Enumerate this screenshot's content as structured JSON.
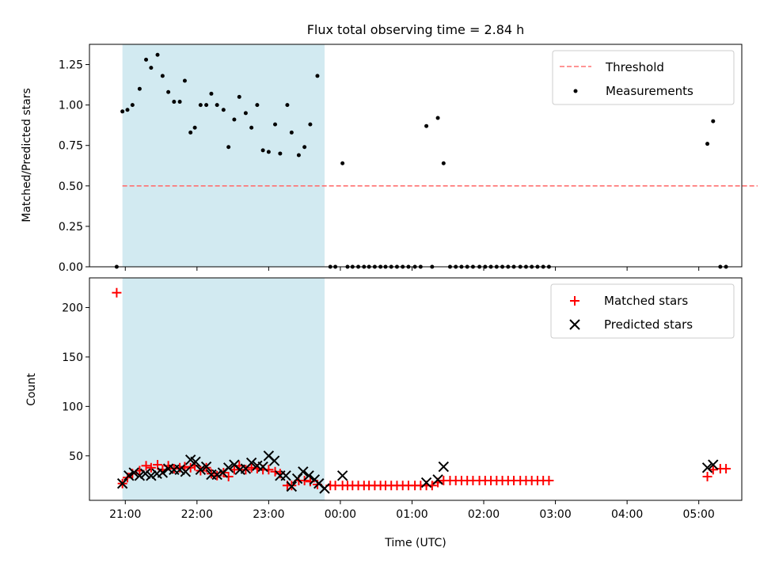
{
  "chart_data": {
    "title": "Flux total observing time = 2.84 h",
    "xlabel": "Time (UTC)",
    "xlim_hours": [
      20.5,
      29.6
    ],
    "xticks": [
      {
        "h": 21,
        "label": "21:00"
      },
      {
        "h": 22,
        "label": "22:00"
      },
      {
        "h": 23,
        "label": "23:00"
      },
      {
        "h": 24,
        "label": "00:00"
      },
      {
        "h": 25,
        "label": "01:00"
      },
      {
        "h": 26,
        "label": "02:00"
      },
      {
        "h": 27,
        "label": "03:00"
      },
      {
        "h": 28,
        "label": "04:00"
      },
      {
        "h": 29,
        "label": "05:00"
      }
    ],
    "shaded_interval_hours": [
      20.96,
      23.78
    ],
    "colors": {
      "shade": "#add8e6",
      "threshold": "#ff7070",
      "measurements": "#000000",
      "matched": "#ff0000",
      "predicted": "#000000"
    },
    "top": {
      "type": "scatter",
      "ylabel": "Matched/Predicted stars",
      "ylim": [
        0,
        1.375
      ],
      "yticks": [
        0,
        0.25,
        0.5,
        0.75,
        1.0,
        1.25
      ],
      "ytick_labels": [
        "0.00",
        "0.25",
        "0.50",
        "0.75",
        "1.00",
        "1.25"
      ],
      "threshold": {
        "name": "Threshold",
        "value": 0.5,
        "x_range": [
          20.96,
          29.82
        ]
      },
      "measurements": {
        "name": "Measurements",
        "points": [
          [
            20.88,
            0
          ],
          [
            20.96,
            0.96
          ],
          [
            21.03,
            0.97
          ],
          [
            21.1,
            1.0
          ],
          [
            21.2,
            1.1
          ],
          [
            21.29,
            1.28
          ],
          [
            21.36,
            1.23
          ],
          [
            21.45,
            1.31
          ],
          [
            21.52,
            1.18
          ],
          [
            21.6,
            1.08
          ],
          [
            21.68,
            1.02
          ],
          [
            21.76,
            1.02
          ],
          [
            21.83,
            1.15
          ],
          [
            21.91,
            0.83
          ],
          [
            21.97,
            0.86
          ],
          [
            22.05,
            1.0
          ],
          [
            22.13,
            1.0
          ],
          [
            22.2,
            1.07
          ],
          [
            22.28,
            1.0
          ],
          [
            22.37,
            0.97
          ],
          [
            22.44,
            0.74
          ],
          [
            22.52,
            0.91
          ],
          [
            22.59,
            1.05
          ],
          [
            22.68,
            0.95
          ],
          [
            22.76,
            0.86
          ],
          [
            22.84,
            1.0
          ],
          [
            22.92,
            0.72
          ],
          [
            23.0,
            0.71
          ],
          [
            23.09,
            0.88
          ],
          [
            23.16,
            0.7
          ],
          [
            23.26,
            1.0
          ],
          [
            23.32,
            0.83
          ],
          [
            23.42,
            0.69
          ],
          [
            23.5,
            0.74
          ],
          [
            23.58,
            0.88
          ],
          [
            23.68,
            1.18
          ],
          [
            23.86,
            0
          ],
          [
            23.93,
            0
          ],
          [
            24.03,
            0.64
          ],
          [
            24.1,
            0
          ],
          [
            24.17,
            0
          ],
          [
            24.25,
            0
          ],
          [
            24.33,
            0
          ],
          [
            24.4,
            0
          ],
          [
            24.48,
            0
          ],
          [
            24.56,
            0
          ],
          [
            24.63,
            0
          ],
          [
            24.71,
            0
          ],
          [
            24.79,
            0
          ],
          [
            24.87,
            0
          ],
          [
            24.95,
            0
          ],
          [
            25.04,
            0
          ],
          [
            25.12,
            0
          ],
          [
            25.2,
            0.87
          ],
          [
            25.28,
            0
          ],
          [
            25.36,
            0.92
          ],
          [
            25.44,
            0.64
          ],
          [
            25.53,
            0
          ],
          [
            25.61,
            0
          ],
          [
            25.69,
            0
          ],
          [
            25.77,
            0
          ],
          [
            25.85,
            0
          ],
          [
            25.94,
            0
          ],
          [
            26.02,
            0
          ],
          [
            26.1,
            0
          ],
          [
            26.18,
            0
          ],
          [
            26.26,
            0
          ],
          [
            26.34,
            0
          ],
          [
            26.42,
            0
          ],
          [
            26.51,
            0
          ],
          [
            26.59,
            0
          ],
          [
            26.67,
            0
          ],
          [
            26.75,
            0
          ],
          [
            26.83,
            0
          ],
          [
            26.91,
            0
          ],
          [
            29.12,
            0.76
          ],
          [
            29.2,
            0.9
          ],
          [
            29.3,
            0
          ],
          [
            29.38,
            0
          ]
        ]
      },
      "legend_position": "upper right"
    },
    "bottom": {
      "type": "scatter",
      "ylabel": "Count",
      "ylim": [
        5,
        230
      ],
      "yticks": [
        50,
        100,
        150,
        200
      ],
      "ytick_labels": [
        "50",
        "100",
        "150",
        "200"
      ],
      "series": [
        {
          "name": "Matched stars",
          "marker": "+",
          "points": [
            [
              20.88,
              215
            ],
            [
              20.96,
              22
            ],
            [
              21.03,
              28
            ],
            [
              21.1,
              32
            ],
            [
              21.2,
              35
            ],
            [
              21.29,
              40
            ],
            [
              21.36,
              38
            ],
            [
              21.45,
              41
            ],
            [
              21.52,
              36
            ],
            [
              21.6,
              40
            ],
            [
              21.68,
              37
            ],
            [
              21.76,
              38
            ],
            [
              21.83,
              39
            ],
            [
              21.91,
              38
            ],
            [
              21.97,
              40
            ],
            [
              22.05,
              35
            ],
            [
              22.13,
              38
            ],
            [
              22.2,
              32
            ],
            [
              22.28,
              30
            ],
            [
              22.37,
              33
            ],
            [
              22.44,
              29
            ],
            [
              22.52,
              36
            ],
            [
              22.59,
              40
            ],
            [
              22.68,
              36
            ],
            [
              22.76,
              38
            ],
            [
              22.84,
              37
            ],
            [
              22.92,
              36
            ],
            [
              23.0,
              36
            ],
            [
              23.09,
              34
            ],
            [
              23.16,
              32
            ],
            [
              23.26,
              20
            ],
            [
              23.32,
              20
            ],
            [
              23.42,
              25
            ],
            [
              23.5,
              25
            ],
            [
              23.58,
              24
            ],
            [
              23.68,
              21
            ],
            [
              23.86,
              20
            ],
            [
              23.93,
              20
            ],
            [
              24.03,
              20
            ],
            [
              24.1,
              20
            ],
            [
              24.17,
              20
            ],
            [
              24.25,
              20
            ],
            [
              24.33,
              20
            ],
            [
              24.4,
              20
            ],
            [
              24.48,
              20
            ],
            [
              24.56,
              20
            ],
            [
              24.63,
              20
            ],
            [
              24.71,
              20
            ],
            [
              24.79,
              20
            ],
            [
              24.87,
              20
            ],
            [
              24.95,
              20
            ],
            [
              25.04,
              20
            ],
            [
              25.12,
              20
            ],
            [
              25.2,
              20
            ],
            [
              25.28,
              20
            ],
            [
              25.36,
              23
            ],
            [
              25.44,
              25
            ],
            [
              25.53,
              25
            ],
            [
              25.61,
              25
            ],
            [
              25.69,
              25
            ],
            [
              25.77,
              25
            ],
            [
              25.85,
              25
            ],
            [
              25.94,
              25
            ],
            [
              26.02,
              25
            ],
            [
              26.1,
              25
            ],
            [
              26.18,
              25
            ],
            [
              26.26,
              25
            ],
            [
              26.34,
              25
            ],
            [
              26.42,
              25
            ],
            [
              26.51,
              25
            ],
            [
              26.59,
              25
            ],
            [
              26.67,
              25
            ],
            [
              26.75,
              25
            ],
            [
              26.83,
              25
            ],
            [
              26.91,
              25
            ],
            [
              29.12,
              29
            ],
            [
              29.2,
              36
            ],
            [
              29.3,
              37
            ],
            [
              29.38,
              37
            ]
          ]
        },
        {
          "name": "Predicted stars",
          "marker": "x",
          "points": [
            [
              20.96,
              22
            ],
            [
              21.05,
              30
            ],
            [
              21.12,
              33
            ],
            [
              21.2,
              30
            ],
            [
              21.28,
              32
            ],
            [
              21.36,
              30
            ],
            [
              21.44,
              32
            ],
            [
              21.52,
              33
            ],
            [
              21.6,
              37
            ],
            [
              21.68,
              36
            ],
            [
              21.76,
              36
            ],
            [
              21.84,
              34
            ],
            [
              21.91,
              46
            ],
            [
              21.98,
              44
            ],
            [
              22.05,
              36
            ],
            [
              22.13,
              39
            ],
            [
              22.2,
              31
            ],
            [
              22.28,
              31
            ],
            [
              22.36,
              33
            ],
            [
              22.44,
              38
            ],
            [
              22.52,
              41
            ],
            [
              22.6,
              36
            ],
            [
              22.68,
              37
            ],
            [
              22.76,
              43
            ],
            [
              22.84,
              40
            ],
            [
              22.92,
              39
            ],
            [
              23.0,
              50
            ],
            [
              23.08,
              45
            ],
            [
              23.16,
              30
            ],
            [
              23.24,
              30
            ],
            [
              23.32,
              19
            ],
            [
              23.4,
              27
            ],
            [
              23.48,
              34
            ],
            [
              23.56,
              30
            ],
            [
              23.64,
              26
            ],
            [
              23.7,
              22
            ],
            [
              23.78,
              17
            ],
            [
              24.03,
              30
            ],
            [
              25.2,
              23
            ],
            [
              25.36,
              26
            ],
            [
              25.44,
              39
            ],
            [
              29.12,
              38
            ],
            [
              29.2,
              41
            ]
          ]
        }
      ],
      "legend_position": "upper right"
    }
  }
}
